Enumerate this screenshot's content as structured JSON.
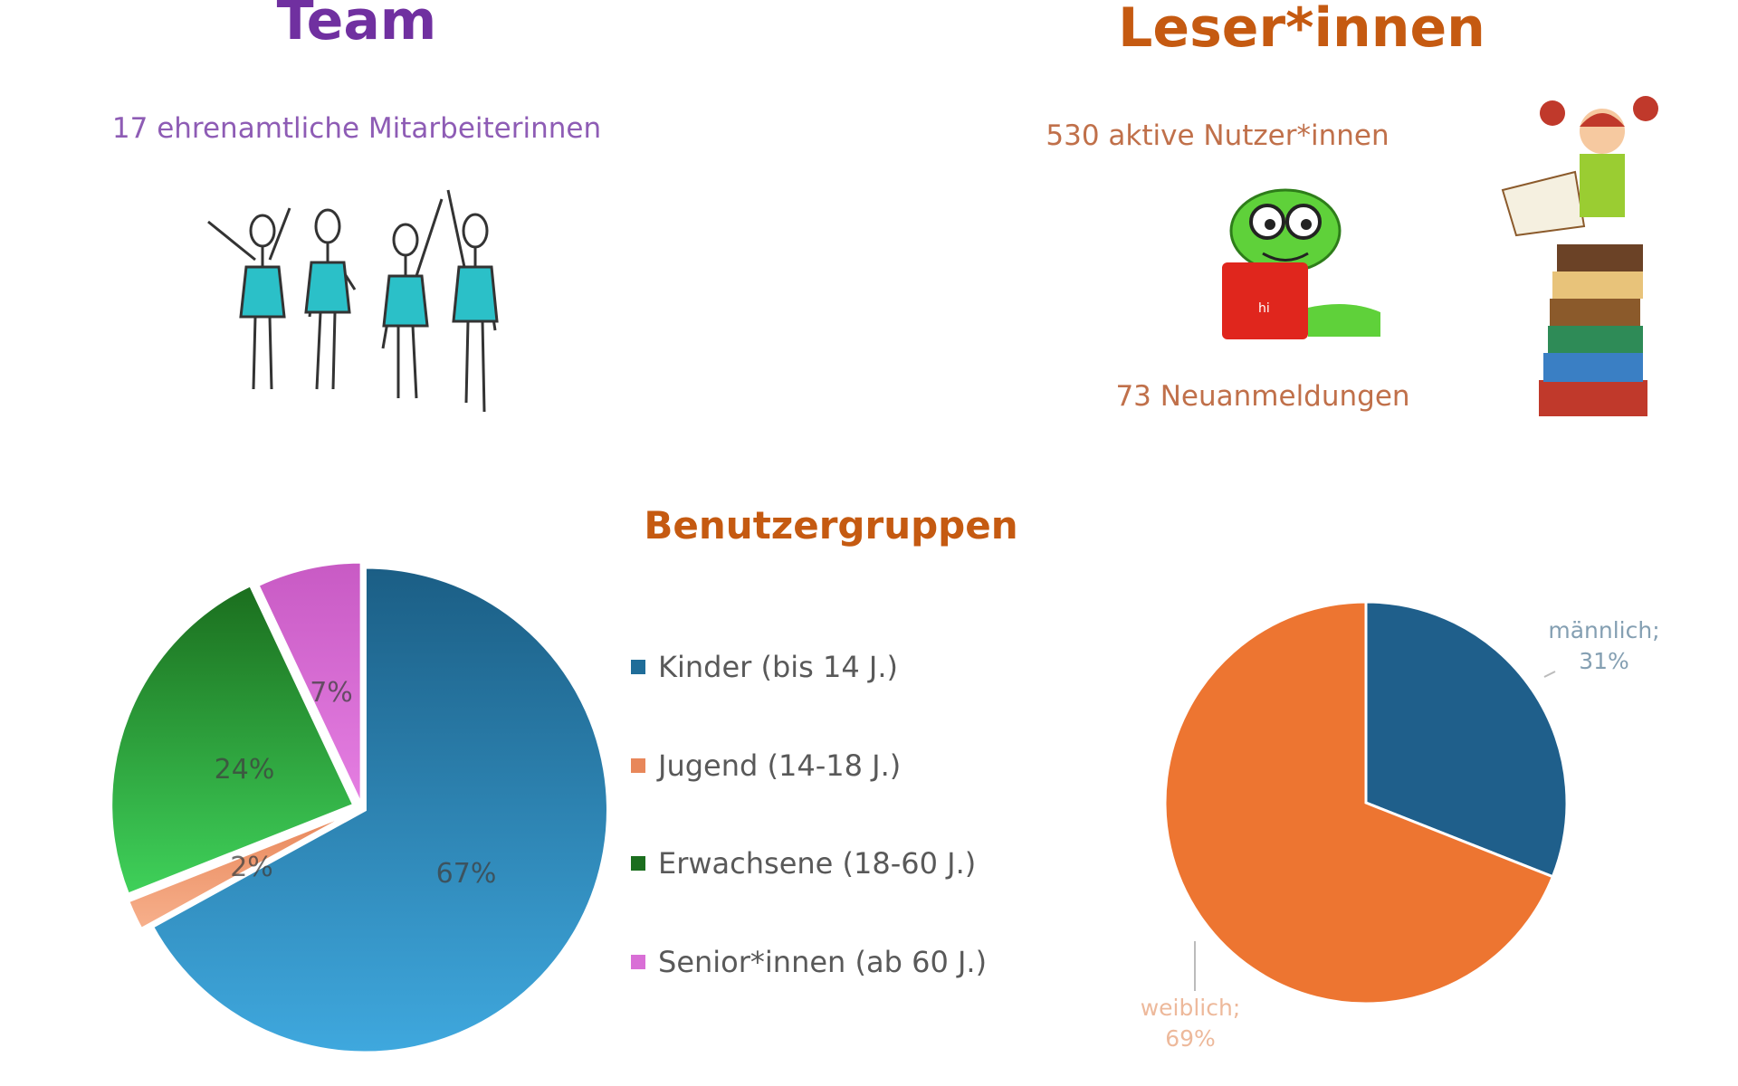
{
  "team": {
    "title": "Team",
    "subtitle": "17 ehrenamtliche Mitarbeiterinnen"
  },
  "readers": {
    "title": "Leser*innen",
    "active": "530 aktive Nutzer*innen",
    "new": "73 Neuanmeldungen"
  },
  "illustrations": {
    "team": "four-stick-figures",
    "worm": "bookworm-reading",
    "girl": "girl-on-book-stack",
    "worm_book_text": "hi"
  },
  "chart_data": [
    {
      "type": "pie",
      "title": "Benutzergruppen",
      "categories": [
        "Kinder (bis 14 J.)",
        "Jugend (14-18 J.)",
        "Erwachsene (18-60 J.)",
        "Senior*innen (ab 60 J.)"
      ],
      "values": [
        67,
        2,
        24,
        7
      ],
      "labels": [
        "67%",
        "2%",
        "24%",
        "7%"
      ],
      "colors": [
        "#2e86c1",
        "#f4a582",
        "#2ca02c",
        "#d96fd6"
      ],
      "legend": "right"
    },
    {
      "type": "pie",
      "categories": [
        "männlich",
        "weiblich"
      ],
      "values": [
        31,
        69
      ],
      "labels": [
        "männlich; 31%",
        "weiblich; 69%"
      ],
      "colors": [
        "#1f5f8b",
        "#ed7531"
      ],
      "legend": "none"
    }
  ]
}
